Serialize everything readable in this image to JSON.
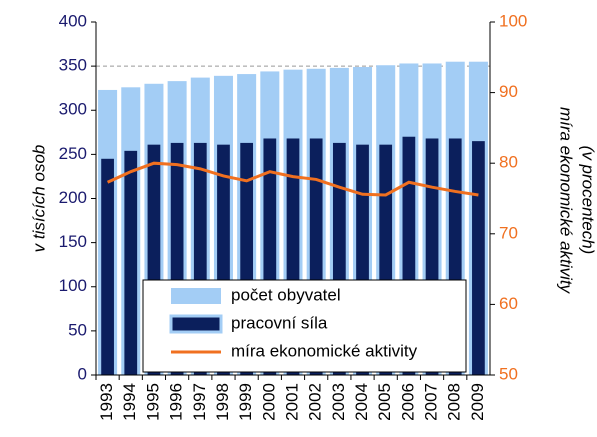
{
  "chart_data": {
    "type": "bar",
    "categories": [
      "1993",
      "1994",
      "1995",
      "1996",
      "1997",
      "1998",
      "1999",
      "2000",
      "2001",
      "2002",
      "2003",
      "2004",
      "2005",
      "2006",
      "2007",
      "2008",
      "2009"
    ],
    "series": [
      {
        "name": "počet obyvatel",
        "type": "bar",
        "color": "#a3cdf5",
        "values": [
          323,
          326,
          330,
          333,
          337,
          339,
          341,
          344,
          346,
          347,
          348,
          349,
          351,
          353,
          353,
          355,
          355
        ]
      },
      {
        "name": "pracovní síla",
        "type": "bar",
        "color": "#0b1f5c",
        "values": [
          245,
          254,
          261,
          263,
          263,
          261,
          263,
          268,
          268,
          268,
          263,
          261,
          261,
          270,
          268,
          268,
          265
        ]
      },
      {
        "name": "míra ekonomické aktivity",
        "type": "line",
        "axis": "y2",
        "color": "#f07020",
        "values": [
          77.3,
          78.8,
          80.0,
          79.8,
          79.2,
          78.2,
          77.5,
          78.8,
          78.1,
          77.7,
          76.6,
          75.6,
          75.5,
          77.3,
          76.6,
          76.0,
          75.5
        ]
      }
    ],
    "y_label": "v tisících osob",
    "y2_label": [
      "míra ekonomické aktivity",
      "(v procentech)"
    ],
    "ylim": [
      0,
      400
    ],
    "yticks": [
      0,
      50,
      100,
      150,
      200,
      250,
      300,
      350,
      400
    ],
    "y2lim": [
      50,
      100
    ],
    "y2ticks": [
      50,
      60,
      70,
      80,
      90,
      100
    ],
    "ygrid": [
      350
    ],
    "ytick_color": "#1a1a6e",
    "y2tick_color": "#f07020",
    "legend": "bottom"
  }
}
